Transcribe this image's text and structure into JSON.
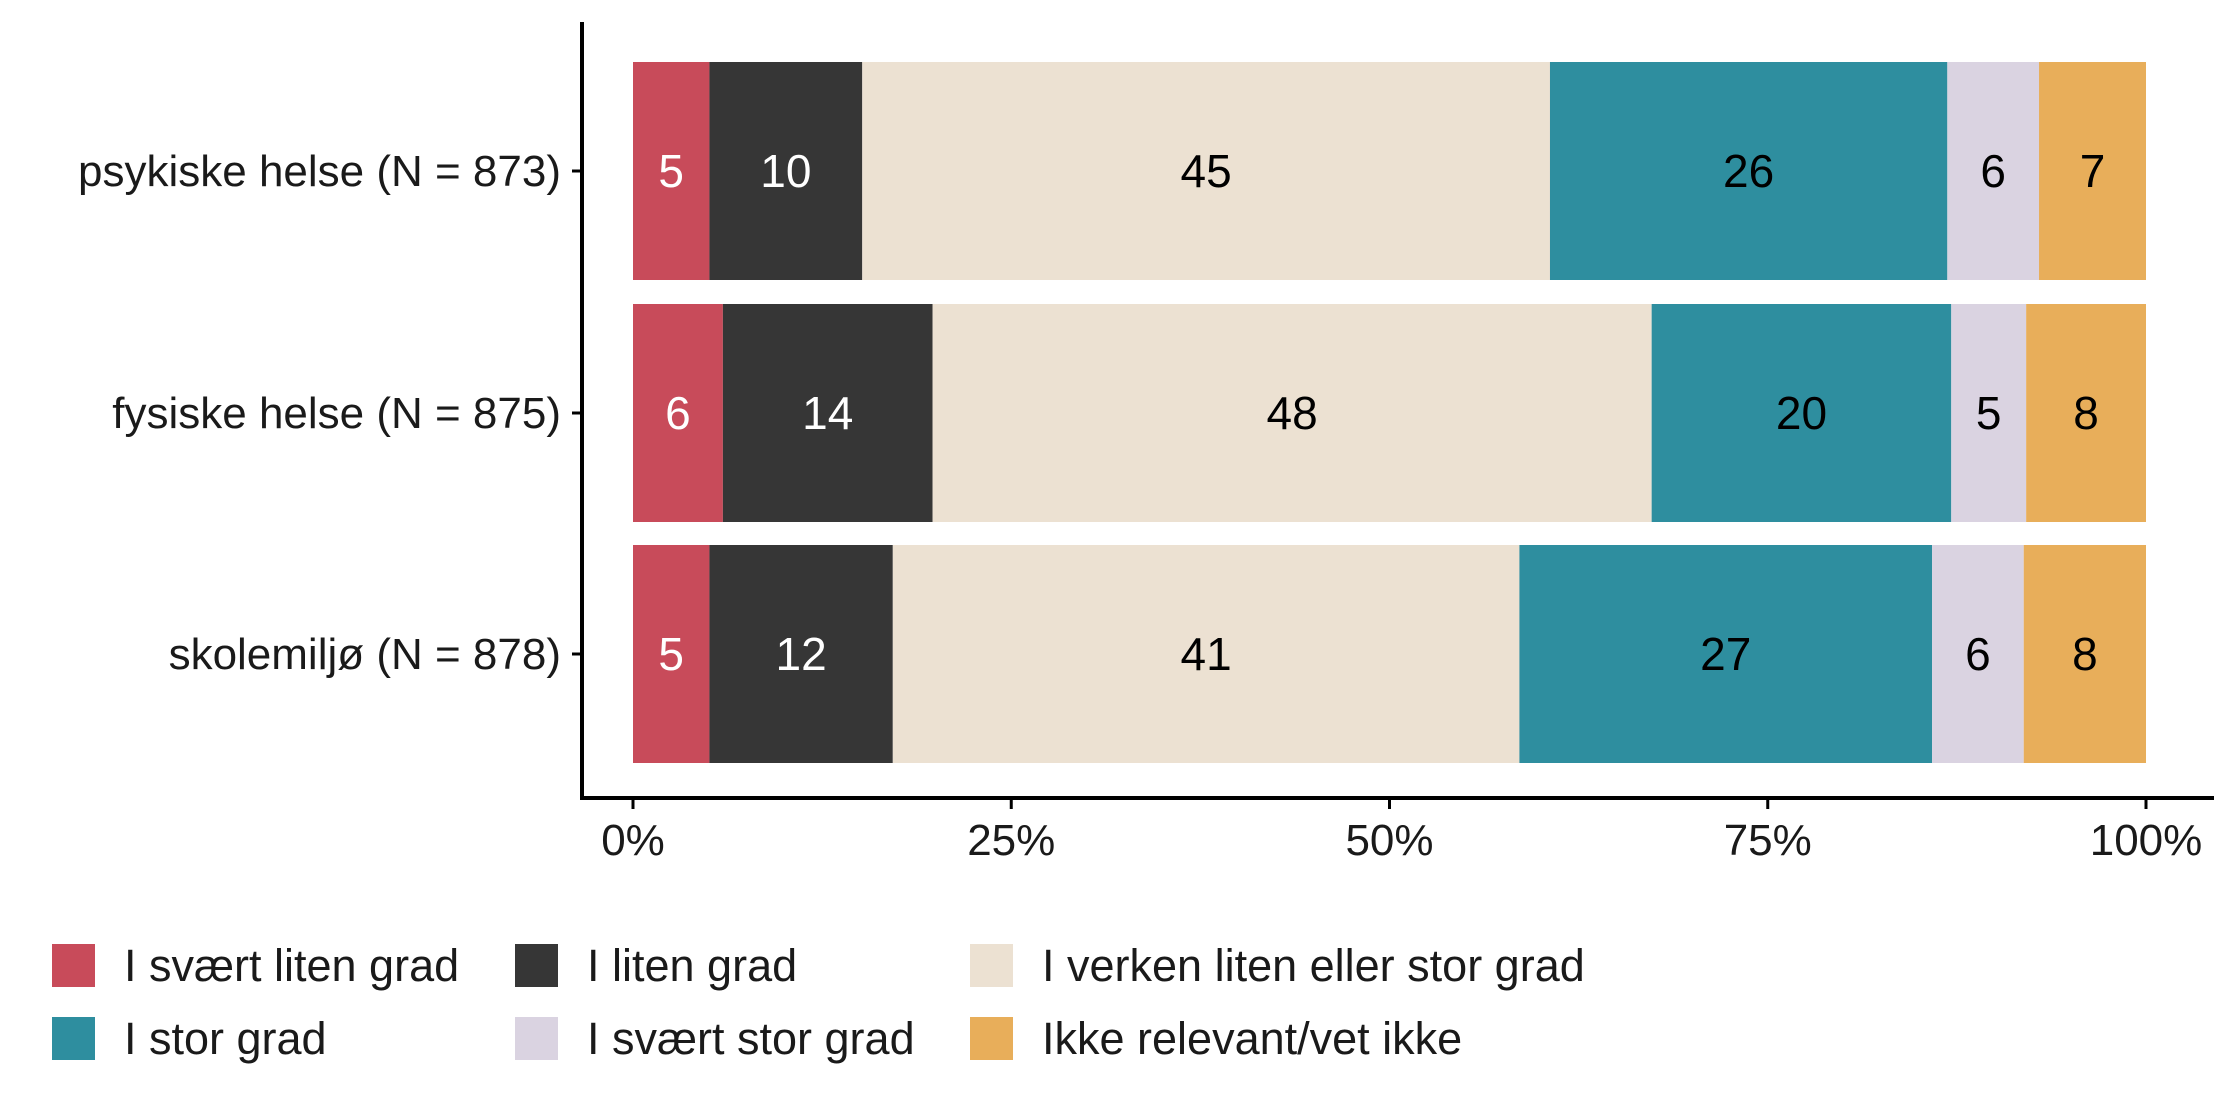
{
  "chart_data": {
    "type": "bar",
    "orientation": "horizontal",
    "stacked": true,
    "normalized": true,
    "categories": [
      "psykiske helse (N = 873)",
      "fysiske helse (N = 875)",
      "skolemiljø (N = 878)"
    ],
    "series": [
      {
        "name": "I svært liten grad",
        "color": "#C84B5A",
        "label_color": "#ffffff",
        "values": [
          5,
          6,
          5
        ],
        "labels": [
          "5",
          "6",
          "5"
        ]
      },
      {
        "name": "I liten grad",
        "color": "#363636",
        "label_color": "#ffffff",
        "values": [
          10,
          14,
          12
        ],
        "labels": [
          "10",
          "14",
          "12"
        ]
      },
      {
        "name": "I verken liten eller stor grad",
        "color": "#ECE1D2",
        "label_color": "#000000",
        "values": [
          45,
          48,
          41
        ],
        "labels": [
          "45",
          "48",
          "41"
        ]
      },
      {
        "name": "I stor grad",
        "color": "#2E8E9F",
        "label_color": "#000000",
        "values": [
          26,
          20,
          27
        ],
        "labels": [
          "26",
          "20",
          "27"
        ]
      },
      {
        "name": "I svært stor grad",
        "color": "#DAD3E1",
        "label_color": "#000000",
        "values": [
          6,
          5,
          6
        ],
        "labels": [
          "6",
          "5",
          "6"
        ]
      },
      {
        "name": "Ikke relevant/vet ikke",
        "color": "#E8AE5A",
        "label_color": "#000000",
        "values": [
          7,
          8,
          8
        ],
        "labels": [
          "7",
          "8",
          "8"
        ]
      }
    ],
    "x_ticks": [
      "0%",
      "25%",
      "50%",
      "75%",
      "100%"
    ],
    "xlim": [
      0,
      100
    ],
    "title": "",
    "xlabel": "",
    "ylabel": "",
    "grid": false,
    "legend_position": "bottom"
  }
}
